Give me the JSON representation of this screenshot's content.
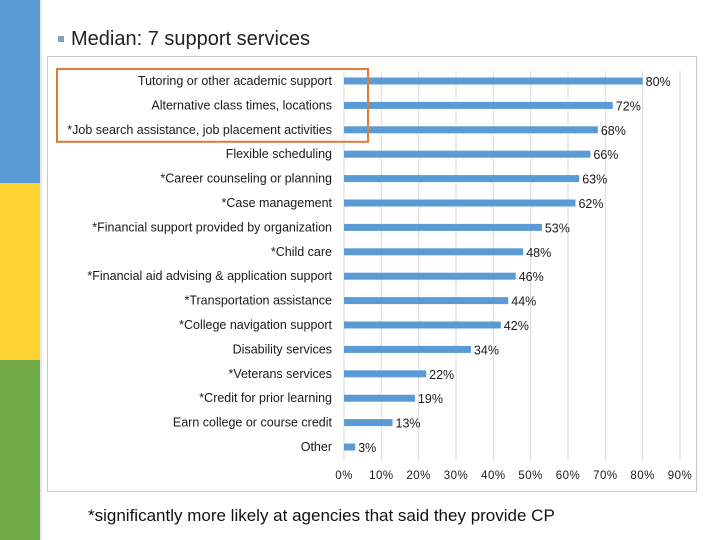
{
  "slide": {
    "title": "Median: 7 support services",
    "footnote": "*significantly more likely at agencies that said they provide CP"
  },
  "colors": {
    "bar": "#5b9bd5",
    "highlight": "#e07b39",
    "grid": "#d9d9d9"
  },
  "chart_data": {
    "type": "bar",
    "orientation": "horizontal",
    "categories": [
      "Tutoring or other academic support",
      "Alternative class times, locations",
      "*Job search assistance, job placement activities",
      "Flexible scheduling",
      "*Career counseling or planning",
      "*Case management",
      "*Financial support provided by organization",
      "*Child care",
      "*Financial aid advising & application support",
      "*Transportation assistance",
      "*College navigation support",
      "Disability services",
      "*Veterans services",
      "*Credit for prior learning",
      "Earn college or course credit",
      "Other"
    ],
    "values": [
      80,
      72,
      68,
      66,
      63,
      62,
      53,
      48,
      46,
      44,
      42,
      34,
      22,
      19,
      13,
      3
    ],
    "value_labels": [
      "80%",
      "72%",
      "68%",
      "66%",
      "63%",
      "62%",
      "53%",
      "48%",
      "46%",
      "44%",
      "42%",
      "34%",
      "22%",
      "19%",
      "13%",
      "3%"
    ],
    "x_ticks": [
      0,
      10,
      20,
      30,
      40,
      50,
      60,
      70,
      80,
      90
    ],
    "x_tick_labels": [
      "0%",
      "10%",
      "20%",
      "30%",
      "40%",
      "50%",
      "60%",
      "70%",
      "80%",
      "90%"
    ],
    "xlim": [
      0,
      90
    ],
    "grid": true,
    "highlight_categories": [
      0,
      1,
      2
    ]
  }
}
